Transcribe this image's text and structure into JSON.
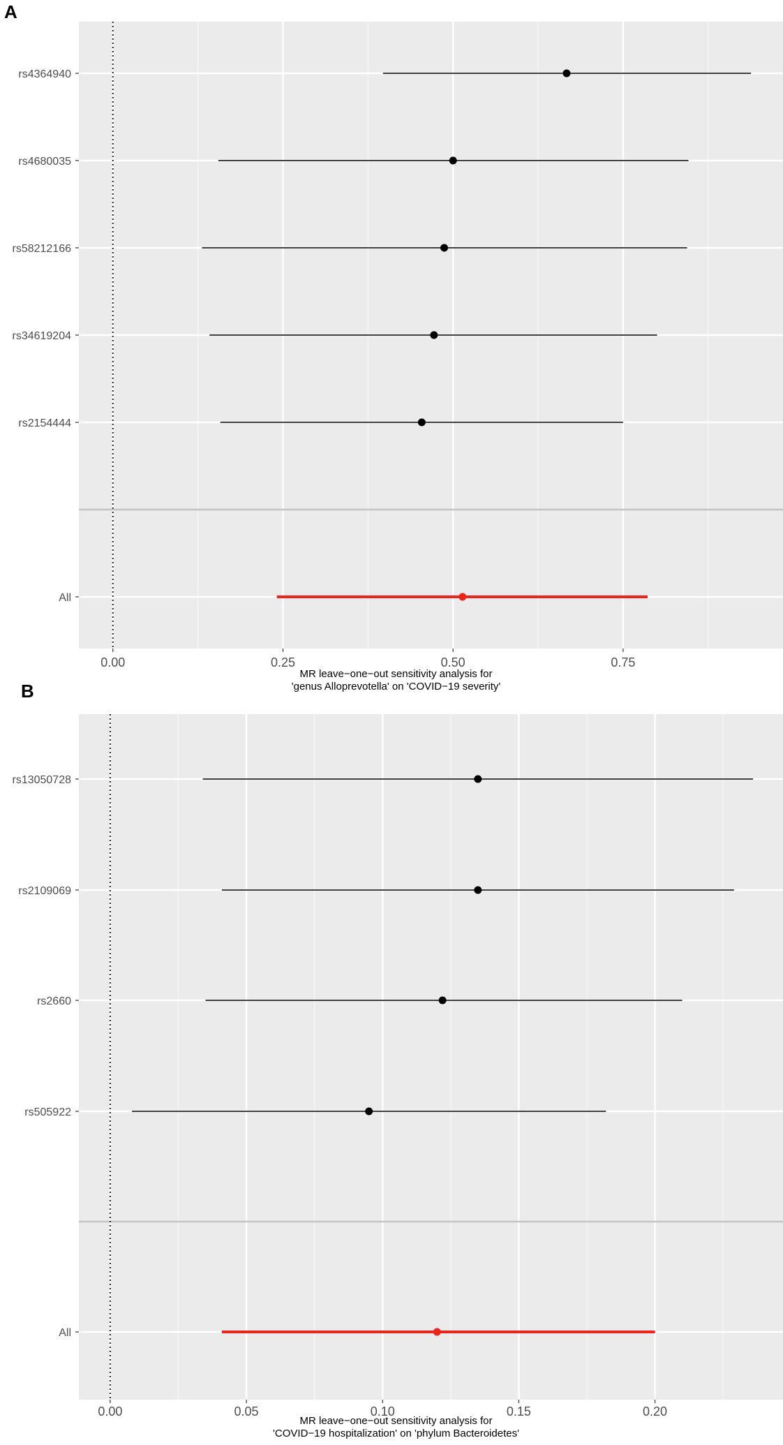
{
  "panels": [
    {
      "letter": "A"
    },
    {
      "letter": "B"
    }
  ],
  "chart_data": [
    {
      "type": "forest",
      "panel": "A",
      "xlabel": [
        "MR leave−one−out sensitivity analysis for",
        "'genus Alloprevotella' on 'COVID−19 severity'"
      ],
      "xlim": [
        -0.05,
        0.985
      ],
      "xticks": [
        0.0,
        0.25,
        0.5,
        0.75
      ],
      "xtick_labels": [
        "0.00",
        "0.25",
        "0.50",
        "0.75"
      ],
      "reference_line": 0,
      "rows": [
        {
          "label": "rs4364940",
          "estimate": 0.667,
          "lower": 0.397,
          "upper": 0.938
        },
        {
          "label": "rs4680035",
          "estimate": 0.5,
          "lower": 0.155,
          "upper": 0.846
        },
        {
          "label": "rs58212166",
          "estimate": 0.487,
          "lower": 0.131,
          "upper": 0.844
        },
        {
          "label": "rs34619204",
          "estimate": 0.472,
          "lower": 0.142,
          "upper": 0.8
        },
        {
          "label": "rs2154444",
          "estimate": 0.454,
          "lower": 0.158,
          "upper": 0.75
        }
      ],
      "overall": {
        "label": "All",
        "estimate": 0.514,
        "lower": 0.241,
        "upper": 0.786
      },
      "colors": {
        "points": "#000000",
        "overall": "#e8261b",
        "panel_bg": "#ebebeb"
      }
    },
    {
      "type": "forest",
      "panel": "B",
      "xlabel": [
        "MR leave−one−out sensitivity analysis for",
        "'COVID−19 hospitalization' on 'phylum Bacteroidetes'"
      ],
      "xlim": [
        -0.0115,
        0.247
      ],
      "xticks": [
        0.0,
        0.05,
        0.1,
        0.15,
        0.2
      ],
      "xtick_labels": [
        "0.00",
        "0.05",
        "0.10",
        "0.15",
        "0.20"
      ],
      "reference_line": 0,
      "rows": [
        {
          "label": "rs13050728",
          "estimate": 0.135,
          "lower": 0.034,
          "upper": 0.236
        },
        {
          "label": "rs2109069",
          "estimate": 0.135,
          "lower": 0.041,
          "upper": 0.229
        },
        {
          "label": "rs2660",
          "estimate": 0.122,
          "lower": 0.035,
          "upper": 0.21
        },
        {
          "label": "rs505922",
          "estimate": 0.095,
          "lower": 0.008,
          "upper": 0.182
        }
      ],
      "overall": {
        "label": "All",
        "estimate": 0.12,
        "lower": 0.041,
        "upper": 0.2
      },
      "colors": {
        "points": "#000000",
        "overall": "#e8261b",
        "panel_bg": "#ebebeb"
      }
    }
  ]
}
